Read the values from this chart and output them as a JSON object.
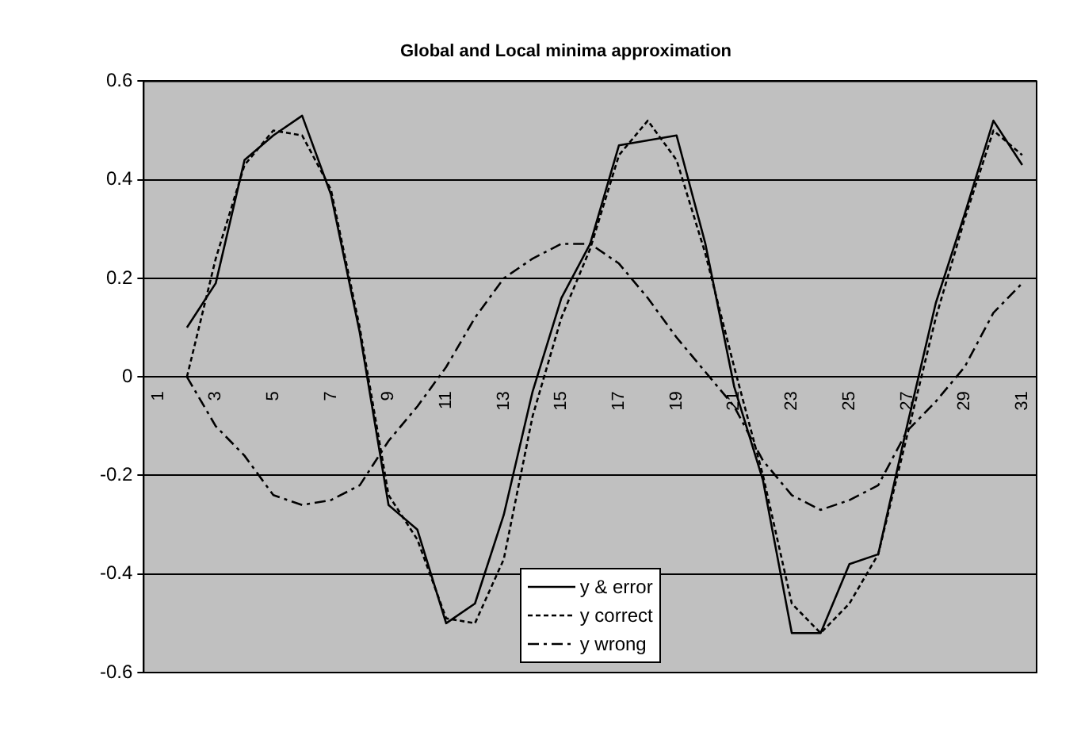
{
  "chart_data": {
    "type": "line",
    "title": "Global and Local minima approximation",
    "categories": [
      "1",
      null,
      "3",
      null,
      "5",
      null,
      "7",
      null,
      "9",
      null,
      "11",
      null,
      "13",
      null,
      "15",
      null,
      "17",
      null,
      "19",
      null,
      "21",
      null,
      "23",
      null,
      "25",
      null,
      "27",
      null,
      "29",
      null,
      "31"
    ],
    "series": [
      {
        "name": "y & error",
        "color": "#000000",
        "line_style": "solid",
        "values": [
          null,
          0.1,
          0.19,
          0.44,
          0.49,
          0.53,
          0.37,
          0.09,
          -0.26,
          -0.31,
          -0.5,
          -0.46,
          -0.28,
          -0.03,
          0.16,
          0.27,
          0.47,
          0.48,
          0.49,
          0.27,
          -0.02,
          -0.21,
          -0.52,
          -0.52,
          -0.38,
          -0.36,
          -0.1,
          0.15,
          0.33,
          0.52,
          0.43
        ]
      },
      {
        "name": "y correct",
        "color": "#000000",
        "line_style": "dotted",
        "values": [
          null,
          0.0,
          0.24,
          0.43,
          0.5,
          0.49,
          0.38,
          0.1,
          -0.24,
          -0.33,
          -0.49,
          -0.5,
          -0.37,
          -0.08,
          0.12,
          0.26,
          0.45,
          0.52,
          0.44,
          0.25,
          0.02,
          -0.2,
          -0.46,
          -0.52,
          -0.46,
          -0.36,
          -0.12,
          0.12,
          0.32,
          0.5,
          0.45
        ]
      },
      {
        "name": "y wrong",
        "color": "#000000",
        "line_style": "dashed",
        "values": [
          null,
          0.0,
          -0.1,
          -0.16,
          -0.24,
          -0.26,
          -0.25,
          -0.22,
          -0.13,
          -0.06,
          0.02,
          0.12,
          0.2,
          0.24,
          0.27,
          0.27,
          0.23,
          0.16,
          0.08,
          0.01,
          -0.06,
          -0.17,
          -0.24,
          -0.27,
          -0.25,
          -0.22,
          -0.11,
          -0.05,
          0.02,
          0.13,
          0.19
        ]
      }
    ],
    "ylim": [
      -0.6,
      0.6
    ],
    "yticks": [
      -0.6,
      -0.4,
      -0.2,
      0,
      0.2,
      0.4,
      0.6
    ],
    "grid": "y",
    "legend": "bottom",
    "marker": "none"
  }
}
